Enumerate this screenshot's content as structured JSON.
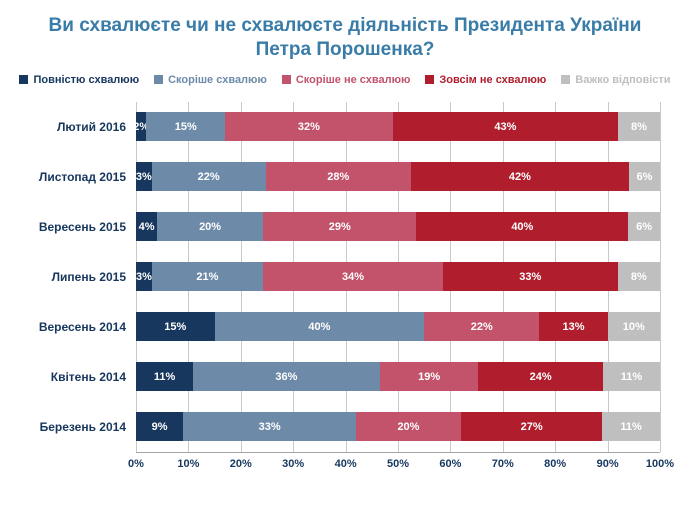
{
  "title": "Ви схвалюєте чи не схвалюєте діяльність Президента України Петра Порошенка?",
  "chart_data": {
    "type": "bar",
    "orientation": "horizontal",
    "stacked": true,
    "title": "Ви схвалюєте чи не схвалюєте діяльність Президента України Петра Порошенка?",
    "categories": [
      "Лютий 2016",
      "Листопад 2015",
      "Вересень 2015",
      "Липень 2015",
      "Вересень 2014",
      "Квітень 2014",
      "Березень 2014"
    ],
    "series": [
      {
        "name": "Повністю схвалюю",
        "color": "#17375e",
        "values": [
          2,
          3,
          4,
          3,
          15,
          11,
          9
        ]
      },
      {
        "name": "Скоріше схвалюю",
        "color": "#6d8ba9",
        "values": [
          15,
          22,
          20,
          21,
          40,
          36,
          33
        ]
      },
      {
        "name": "Скоріше не схвалюю",
        "color": "#c3536b",
        "values": [
          32,
          28,
          29,
          34,
          22,
          19,
          20
        ]
      },
      {
        "name": "Зовсім не схвалюю",
        "color": "#b01e2e",
        "values": [
          43,
          42,
          40,
          33,
          13,
          24,
          27
        ]
      },
      {
        "name": "Важко відповісти",
        "color": "#bfbfbf",
        "values": [
          8,
          6,
          6,
          8,
          10,
          11,
          11
        ]
      }
    ],
    "value_suffix": "%",
    "xlim": [
      0,
      100
    ],
    "x_ticks": [
      "0%",
      "10%",
      "20%",
      "30%",
      "40%",
      "50%",
      "60%",
      "70%",
      "80%",
      "90%",
      "100%"
    ],
    "grid": "vertical",
    "legend_position": "top"
  }
}
